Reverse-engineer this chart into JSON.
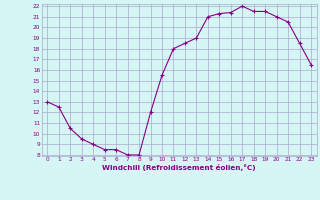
{
  "x": [
    0,
    1,
    2,
    3,
    4,
    5,
    6,
    7,
    8,
    9,
    10,
    11,
    12,
    13,
    14,
    15,
    16,
    17,
    18,
    19,
    20,
    21,
    22,
    23
  ],
  "y": [
    13.0,
    12.5,
    10.5,
    9.5,
    9.0,
    8.5,
    8.5,
    8.0,
    8.0,
    12.0,
    15.5,
    18.0,
    18.5,
    19.0,
    21.0,
    21.3,
    21.4,
    22.0,
    21.5,
    21.5,
    21.0,
    20.5,
    18.5,
    16.5
  ],
  "line_color": "#880088",
  "marker": "+",
  "marker_color": "#880088",
  "bg_color": "#d6f5f5",
  "grid_color": "#aaaacc",
  "xlabel": "Windchill (Refroidissement éolien,°C)",
  "xlabel_color": "#880088",
  "tick_color": "#880088",
  "ylim": [
    8,
    22
  ],
  "xlim": [
    -0.5,
    23.5
  ],
  "yticks": [
    8,
    9,
    10,
    11,
    12,
    13,
    14,
    15,
    16,
    17,
    18,
    19,
    20,
    21,
    22
  ],
  "xticks": [
    0,
    1,
    2,
    3,
    4,
    5,
    6,
    7,
    8,
    9,
    10,
    11,
    12,
    13,
    14,
    15,
    16,
    17,
    18,
    19,
    20,
    21,
    22,
    23
  ]
}
